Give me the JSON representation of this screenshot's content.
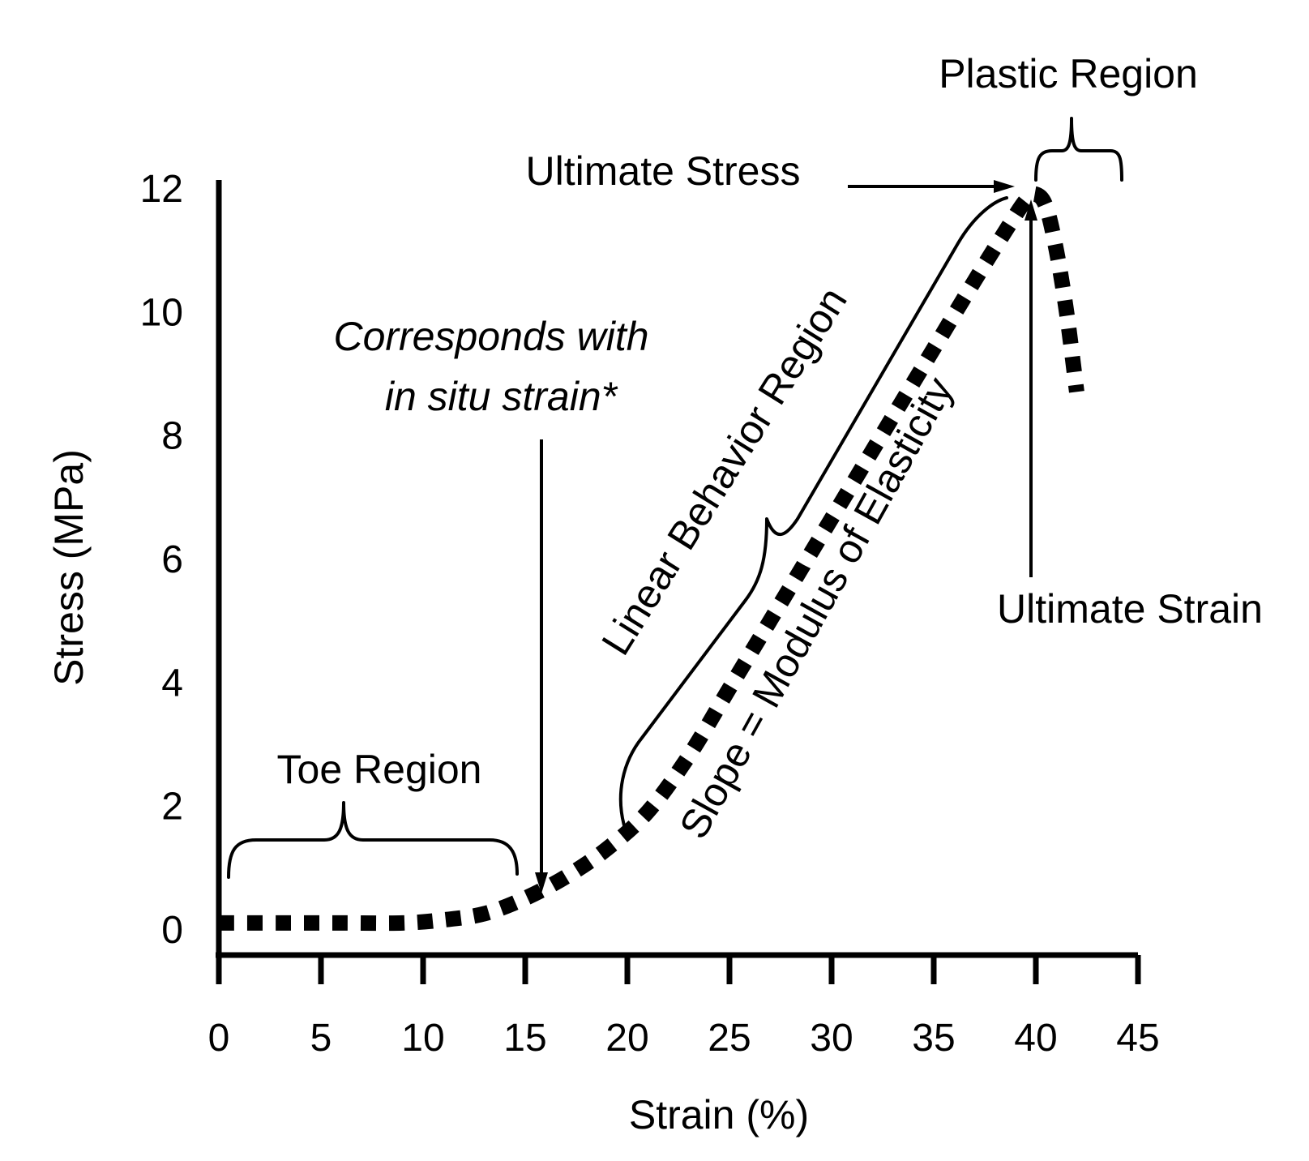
{
  "chart_data": {
    "type": "line",
    "title": "",
    "xlabel": "Strain (%)",
    "ylabel": "Stress (MPa)",
    "xlim": [
      0,
      45
    ],
    "ylim": [
      0,
      12
    ],
    "x_ticks": [
      0,
      5,
      10,
      15,
      20,
      25,
      30,
      35,
      40,
      45
    ],
    "y_ticks": [
      0,
      2,
      4,
      6,
      8,
      10,
      12
    ],
    "grid": false,
    "series": [
      {
        "style": "dotted",
        "color": "#000000",
        "x": [
          0,
          3,
          6,
          9,
          11,
          13,
          15,
          17,
          19,
          21,
          23,
          25,
          27,
          29,
          31,
          33,
          35,
          37,
          38.5,
          39.5,
          40,
          40.5,
          41,
          41.5,
          42
        ],
        "y": [
          0.1,
          0.1,
          0.1,
          0.1,
          0.15,
          0.25,
          0.5,
          0.85,
          1.3,
          1.9,
          2.8,
          3.9,
          5.0,
          6.1,
          7.2,
          8.3,
          9.4,
          10.5,
          11.3,
          11.8,
          11.9,
          11.7,
          11.0,
          10.0,
          8.7
        ]
      }
    ],
    "annotations": {
      "plastic_region": "Plastic Region",
      "ultimate_stress": "Ultimate Stress",
      "corresponds_line1": "Corresponds with",
      "corresponds_line2": "in situ strain*",
      "linear_region": "Linear Behavior Region",
      "slope": "Slope = Modulus of Elasticity",
      "ultimate_strain": "Ultimate Strain",
      "toe_region": "Toe Region"
    }
  }
}
